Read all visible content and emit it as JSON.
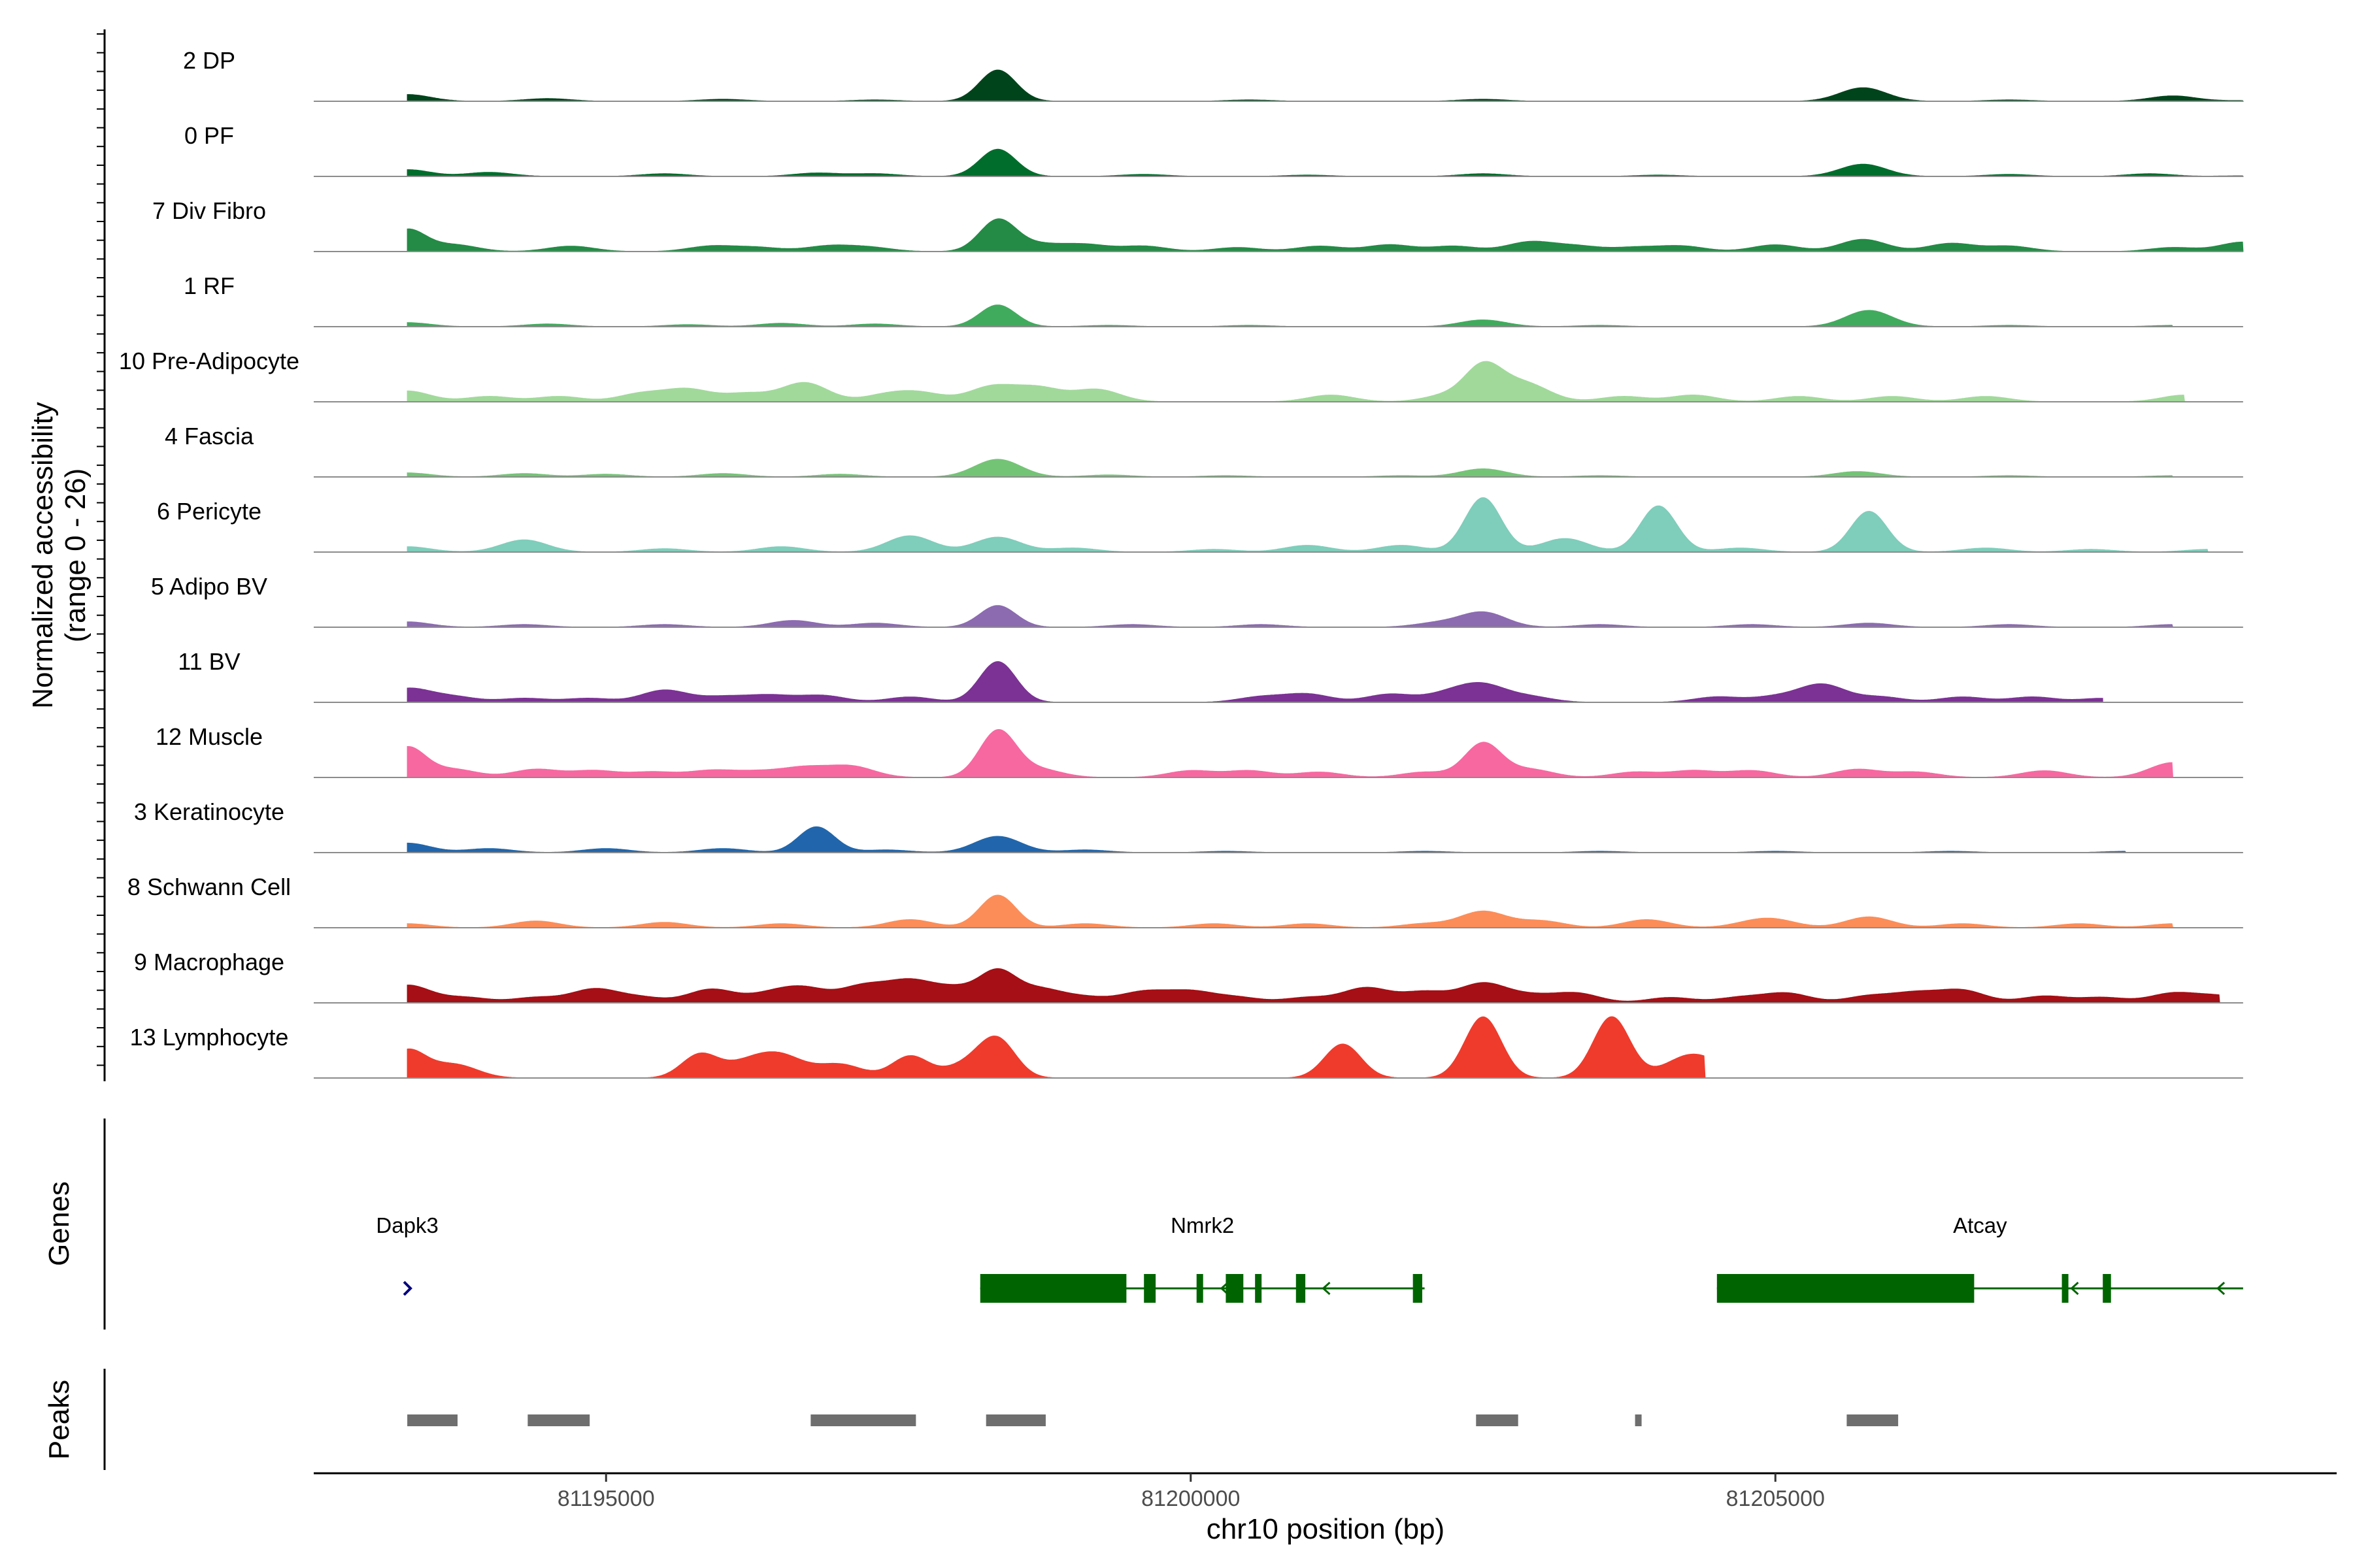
{
  "chart_data": {
    "type": "area",
    "chromosome": "chr10",
    "xrange": [
      81192500,
      81209800
    ],
    "xlabel": "chr10 position (bp)",
    "ylabel": "Normalized accessibility",
    "ylabel_range": "(range 0 - 26)",
    "ylim": [
      0,
      26
    ],
    "x_ticks": [
      81195000,
      81200000,
      81205000
    ],
    "x_tick_labels": [
      "81195000",
      "81200000",
      "81205000"
    ],
    "series": [
      {
        "name": "2 DP",
        "color": "#00441b",
        "points": [
          [
            81193300,
            5
          ],
          [
            81194500,
            2
          ],
          [
            81196000,
            1.5
          ],
          [
            81197300,
            1
          ],
          [
            81198350,
            23
          ],
          [
            81200500,
            1
          ],
          [
            81202500,
            1.5
          ],
          [
            81205750,
            10
          ],
          [
            81207000,
            1
          ],
          [
            81208400,
            4
          ],
          [
            81209000,
            0.5
          ]
        ]
      },
      {
        "name": "0 PF",
        "color": "#006d2c",
        "points": [
          [
            81193300,
            5
          ],
          [
            81194000,
            3
          ],
          [
            81195500,
            2
          ],
          [
            81196800,
            2.5
          ],
          [
            81197300,
            2
          ],
          [
            81198350,
            20
          ],
          [
            81199600,
            1.5
          ],
          [
            81201000,
            1
          ],
          [
            81202500,
            2
          ],
          [
            81204000,
            1
          ],
          [
            81205750,
            9
          ],
          [
            81207000,
            1.5
          ],
          [
            81208200,
            2
          ],
          [
            81209000,
            0.5
          ]
        ]
      },
      {
        "name": "7 Div Fibro",
        "color": "#238b45",
        "points": [
          [
            81193300,
            16
          ],
          [
            81193700,
            5
          ],
          [
            81194700,
            4
          ],
          [
            81195900,
            4
          ],
          [
            81196300,
            3
          ],
          [
            81196900,
            4
          ],
          [
            81197250,
            3
          ],
          [
            81198350,
            23
          ],
          [
            81198700,
            5
          ],
          [
            81199100,
            5
          ],
          [
            81199600,
            4
          ],
          [
            81200400,
            3
          ],
          [
            81201100,
            4
          ],
          [
            81201700,
            5
          ],
          [
            81202250,
            4
          ],
          [
            81202900,
            7
          ],
          [
            81203300,
            4
          ],
          [
            81203800,
            3
          ],
          [
            81204200,
            4
          ],
          [
            81205000,
            5
          ],
          [
            81205750,
            9
          ],
          [
            81206500,
            6
          ],
          [
            81207000,
            4
          ],
          [
            81208400,
            3
          ],
          [
            81209000,
            7
          ]
        ]
      },
      {
        "name": "1 RF",
        "color": "#41ab5d",
        "points": [
          [
            81193300,
            3
          ],
          [
            81194500,
            2
          ],
          [
            81195700,
            1.5
          ],
          [
            81196500,
            2.5
          ],
          [
            81197300,
            2
          ],
          [
            81198350,
            16
          ],
          [
            81199300,
            1
          ],
          [
            81200500,
            1
          ],
          [
            81202500,
            5
          ],
          [
            81203500,
            1
          ],
          [
            81205800,
            12
          ],
          [
            81207000,
            1
          ],
          [
            81208400,
            1
          ]
        ]
      },
      {
        "name": "10 Pre-Adipocyte",
        "color": "#a1d99b",
        "points": [
          [
            81193300,
            8
          ],
          [
            81194000,
            4
          ],
          [
            81194600,
            4
          ],
          [
            81195300,
            6
          ],
          [
            81195700,
            9
          ],
          [
            81196200,
            6
          ],
          [
            81196700,
            14
          ],
          [
            81197400,
            5
          ],
          [
            81197700,
            6
          ],
          [
            81198300,
            11
          ],
          [
            81198700,
            10
          ],
          [
            81199200,
            9
          ],
          [
            81201200,
            5
          ],
          [
            81202200,
            5
          ],
          [
            81202700,
            6
          ],
          [
            81202500,
            23
          ],
          [
            81202900,
            10
          ],
          [
            81203700,
            4
          ],
          [
            81204300,
            5
          ],
          [
            81205200,
            4
          ],
          [
            81206000,
            4
          ],
          [
            81206800,
            4
          ],
          [
            81208500,
            5
          ]
        ]
      },
      {
        "name": "4 Fascia",
        "color": "#74c476",
        "points": [
          [
            81193300,
            3
          ],
          [
            81194300,
            2.5
          ],
          [
            81195000,
            2
          ],
          [
            81196000,
            2.5
          ],
          [
            81197000,
            2
          ],
          [
            81198350,
            13
          ],
          [
            81199300,
            1.5
          ],
          [
            81200300,
            1
          ],
          [
            81201800,
            1
          ],
          [
            81202500,
            6
          ],
          [
            81203500,
            1
          ],
          [
            81205700,
            4
          ],
          [
            81207000,
            1
          ],
          [
            81208400,
            1
          ]
        ]
      },
      {
        "name": "6 Pericyte",
        "color": "#7fcdbb",
        "points": [
          [
            81193300,
            4
          ],
          [
            81194300,
            9
          ],
          [
            81195500,
            2.5
          ],
          [
            81196500,
            4
          ],
          [
            81197600,
            12
          ],
          [
            81198350,
            11
          ],
          [
            81199000,
            3
          ],
          [
            81200200,
            2
          ],
          [
            81201000,
            5
          ],
          [
            81201800,
            5
          ],
          [
            81202500,
            40
          ],
          [
            81203200,
            10
          ],
          [
            81204000,
            34
          ],
          [
            81204700,
            3
          ],
          [
            81205800,
            30
          ],
          [
            81206800,
            3
          ],
          [
            81207700,
            2
          ],
          [
            81208700,
            2
          ]
        ]
      },
      {
        "name": "5 Adipo BV",
        "color": "#8c6bb1",
        "points": [
          [
            81193300,
            4
          ],
          [
            81194300,
            2
          ],
          [
            81195500,
            2
          ],
          [
            81196600,
            5
          ],
          [
            81197300,
            3
          ],
          [
            81198350,
            16
          ],
          [
            81199500,
            2
          ],
          [
            81200600,
            2
          ],
          [
            81202100,
            3
          ],
          [
            81202500,
            11
          ],
          [
            81203500,
            2
          ],
          [
            81204800,
            2
          ],
          [
            81205800,
            3
          ],
          [
            81207000,
            2
          ],
          [
            81208400,
            2
          ]
        ]
      },
      {
        "name": "11 BV",
        "color": "#7b3294",
        "points": [
          [
            81193300,
            10
          ],
          [
            81193700,
            4
          ],
          [
            81194300,
            3
          ],
          [
            81194850,
            3
          ],
          [
            81195500,
            9
          ],
          [
            81196000,
            4
          ],
          [
            81196400,
            5
          ],
          [
            81196850,
            5
          ],
          [
            81197600,
            4
          ],
          [
            81198350,
            30
          ],
          [
            81200600,
            4
          ],
          [
            81201000,
            6
          ],
          [
            81201700,
            6
          ],
          [
            81202200,
            6
          ],
          [
            81202500,
            12
          ],
          [
            81202900,
            4
          ],
          [
            81204500,
            4
          ],
          [
            81205000,
            4
          ],
          [
            81205400,
            13
          ],
          [
            81205900,
            4
          ],
          [
            81206600,
            4
          ],
          [
            81207200,
            4
          ],
          [
            81207800,
            3
          ]
        ]
      },
      {
        "name": "12 Muscle",
        "color": "#f768a1",
        "points": [
          [
            81193300,
            22
          ],
          [
            81193700,
            6
          ],
          [
            81194400,
            6
          ],
          [
            81194900,
            5
          ],
          [
            81195400,
            4
          ],
          [
            81195900,
            5
          ],
          [
            81196300,
            4
          ],
          [
            81196700,
            7
          ],
          [
            81197100,
            8
          ],
          [
            81198350,
            34
          ],
          [
            81198700,
            6
          ],
          [
            81200000,
            5
          ],
          [
            81200500,
            5
          ],
          [
            81201100,
            4
          ],
          [
            81202000,
            4
          ],
          [
            81202500,
            25
          ],
          [
            81202900,
            6
          ],
          [
            81203800,
            4
          ],
          [
            81204300,
            5
          ],
          [
            81204800,
            5
          ],
          [
            81205700,
            6
          ],
          [
            81206200,
            4
          ],
          [
            81207300,
            5
          ],
          [
            81208400,
            11
          ]
        ]
      },
      {
        "name": "3 Keratinocyte",
        "color": "#2166ac",
        "points": [
          [
            81193300,
            7
          ],
          [
            81194000,
            3
          ],
          [
            81195000,
            3
          ],
          [
            81196000,
            3
          ],
          [
            81196800,
            19
          ],
          [
            81197400,
            2
          ],
          [
            81198350,
            12
          ],
          [
            81199100,
            2
          ],
          [
            81200300,
            1
          ],
          [
            81202000,
            1
          ],
          [
            81203500,
            1
          ],
          [
            81205000,
            1
          ],
          [
            81206500,
            1
          ],
          [
            81208000,
            1
          ]
        ]
      },
      {
        "name": "8 Schwann Cell",
        "color": "#fc8d59",
        "points": [
          [
            81193300,
            3
          ],
          [
            81194400,
            5
          ],
          [
            81195500,
            4
          ],
          [
            81196500,
            3
          ],
          [
            81197600,
            6
          ],
          [
            81198350,
            24
          ],
          [
            81199100,
            3
          ],
          [
            81200200,
            3
          ],
          [
            81201000,
            3
          ],
          [
            81202000,
            3
          ],
          [
            81202500,
            12
          ],
          [
            81203000,
            5
          ],
          [
            81203900,
            6
          ],
          [
            81204800,
            3
          ],
          [
            81205000,
            5
          ],
          [
            81205800,
            8
          ],
          [
            81206600,
            3
          ],
          [
            81207600,
            3
          ],
          [
            81208400,
            3
          ]
        ]
      },
      {
        "name": "9 Macrophage",
        "color": "#a50f15",
        "points": [
          [
            81193300,
            13
          ],
          [
            81193800,
            4
          ],
          [
            81194400,
            4
          ],
          [
            81194900,
            10
          ],
          [
            81195300,
            4
          ],
          [
            81195900,
            10
          ],
          [
            81196400,
            6
          ],
          [
            81196700,
            10
          ],
          [
            81197200,
            12
          ],
          [
            81197600,
            15
          ],
          [
            81198000,
            10
          ],
          [
            81198350,
            21
          ],
          [
            81198700,
            10
          ],
          [
            81199100,
            4
          ],
          [
            81199600,
            8
          ],
          [
            81200000,
            8
          ],
          [
            81200400,
            4
          ],
          [
            81201000,
            4
          ],
          [
            81201500,
            11
          ],
          [
            81202000,
            8
          ],
          [
            81202500,
            14
          ],
          [
            81202900,
            5
          ],
          [
            81203300,
            7
          ],
          [
            81204100,
            4
          ],
          [
            81204700,
            4
          ],
          [
            81205100,
            7
          ],
          [
            81205800,
            5
          ],
          [
            81206200,
            7
          ],
          [
            81206600,
            9
          ],
          [
            81207300,
            5
          ],
          [
            81207800,
            4
          ],
          [
            81208400,
            7
          ],
          [
            81208800,
            5
          ]
        ]
      },
      {
        "name": "13 Lymphocyte",
        "color": "#ef3b2c",
        "points": [
          [
            81193300,
            20
          ],
          [
            81193700,
            10
          ],
          [
            81195800,
            17
          ],
          [
            81196200,
            10
          ],
          [
            81196500,
            15
          ],
          [
            81197000,
            10
          ],
          [
            81197600,
            16
          ],
          [
            81198100,
            10
          ],
          [
            81198350,
            26
          ],
          [
            81201300,
            25
          ],
          [
            81202500,
            45
          ],
          [
            81203600,
            45
          ],
          [
            81204200,
            10
          ],
          [
            81204400,
            10
          ]
        ]
      }
    ]
  },
  "panels": {
    "genes_title": "Genes",
    "peaks_title": "Peaks"
  },
  "genes": [
    {
      "name": "Dapk3",
      "strand": "+",
      "color": "#000080",
      "start": 81193300,
      "end": 81193300,
      "exons": []
    },
    {
      "name": "Nmrk2",
      "strand": "-",
      "color": "#006400",
      "start": 81198200,
      "end": 81202000,
      "exons": [
        [
          81198200,
          81199450
        ],
        [
          81199600,
          81199700
        ],
        [
          81200050,
          81200100
        ],
        [
          81200300,
          81200450
        ],
        [
          81200550,
          81200580
        ],
        [
          81200900,
          81200980
        ],
        [
          81201900,
          81201980
        ]
      ]
    },
    {
      "name": "Atcay",
      "strand": "-",
      "color": "#006400",
      "start": 81204500,
      "end": 81209000,
      "exons": [
        [
          81204500,
          81206700
        ],
        [
          81207450,
          81207500
        ],
        [
          81207800,
          81207870
        ]
      ]
    }
  ],
  "peaks": [
    {
      "start": 81193300,
      "end": 81193730,
      "color": "#6e6e6e"
    },
    {
      "start": 81194330,
      "end": 81194860,
      "color": "#6e6e6e"
    },
    {
      "start": 81196750,
      "end": 81197650,
      "color": "#6e6e6e"
    },
    {
      "start": 81198250,
      "end": 81198760,
      "color": "#6e6e6e"
    },
    {
      "start": 81202440,
      "end": 81202800,
      "color": "#6e6e6e"
    },
    {
      "start": 81203800,
      "end": 81203850,
      "color": "#6e6e6e"
    },
    {
      "start": 81205610,
      "end": 81206050,
      "color": "#6e6e6e"
    }
  ]
}
